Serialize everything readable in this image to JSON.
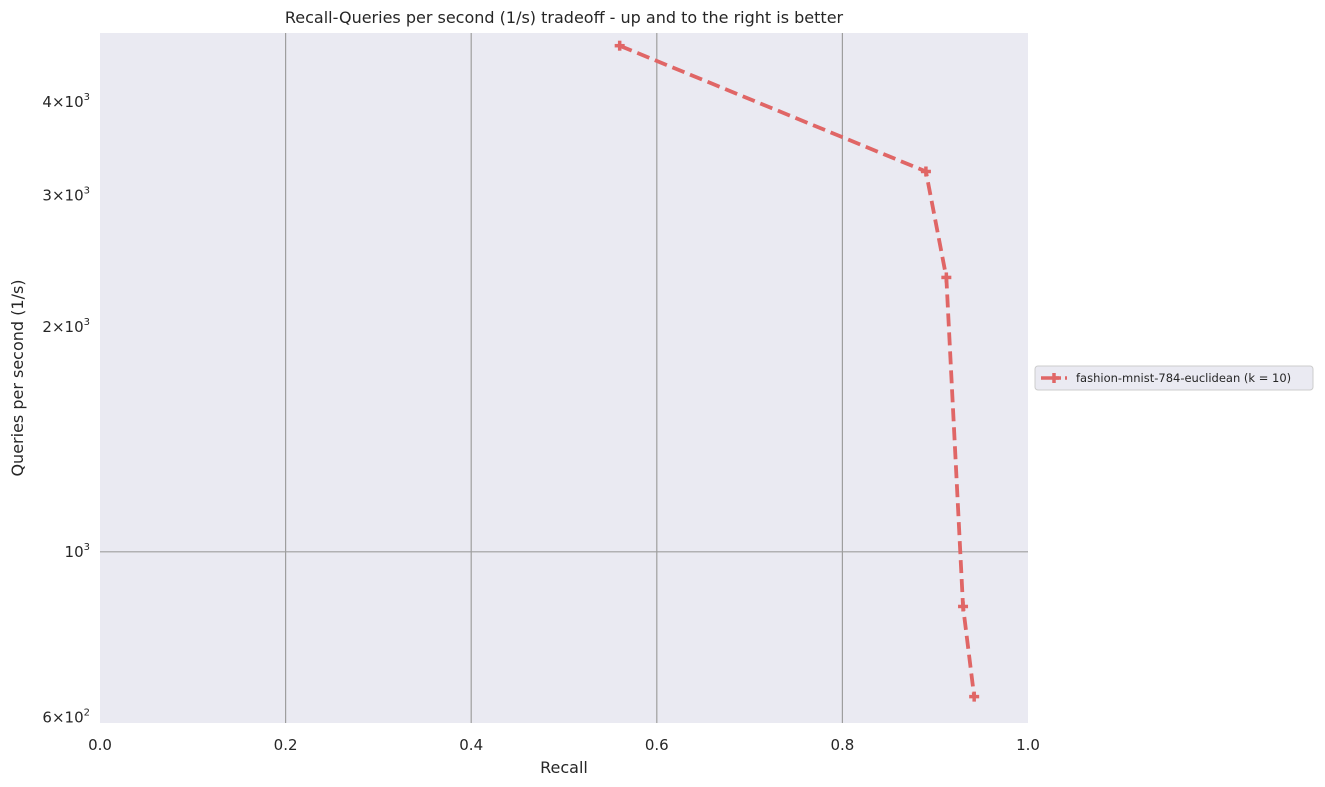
{
  "chart_data": {
    "type": "line",
    "title": "Recall-Queries per second (1/s) tradeoff - up and to the right is better",
    "xlabel": "Recall",
    "ylabel": "Queries per second (1/s)",
    "xlim": [
      0.0,
      1.0
    ],
    "ylim": [
      590,
      4950
    ],
    "yscale": "log",
    "grid": true,
    "legend_position": "center-right, outside plot",
    "xticks": [
      0.0,
      0.2,
      0.4,
      0.6,
      0.8,
      1.0
    ],
    "xtick_labels": [
      "0.0",
      "0.2",
      "0.4",
      "0.6",
      "0.8",
      "1.0"
    ],
    "yticks": [
      {
        "value": 600,
        "mantissa": "6",
        "exp": "2"
      },
      {
        "value": 1000,
        "mantissa": "",
        "exp": "3"
      },
      {
        "value": 2000,
        "mantissa": "2",
        "exp": "3"
      },
      {
        "value": 3000,
        "mantissa": "3",
        "exp": "3"
      },
      {
        "value": 4000,
        "mantissa": "4",
        "exp": "3"
      }
    ],
    "series": [
      {
        "name": "fashion-mnist-784-euclidean (k = 10)",
        "color": "#e06666",
        "line_style": "dashed",
        "marker": "plus",
        "points": [
          {
            "x": 0.56,
            "y": 4760
          },
          {
            "x": 0.89,
            "y": 3230
          },
          {
            "x": 0.912,
            "y": 2330
          },
          {
            "x": 0.93,
            "y": 845
          },
          {
            "x": 0.942,
            "y": 640
          }
        ]
      }
    ]
  },
  "colors": {
    "plot_background": "#eaeaf2",
    "grid": "#9e9e9e",
    "text": "#262626"
  }
}
